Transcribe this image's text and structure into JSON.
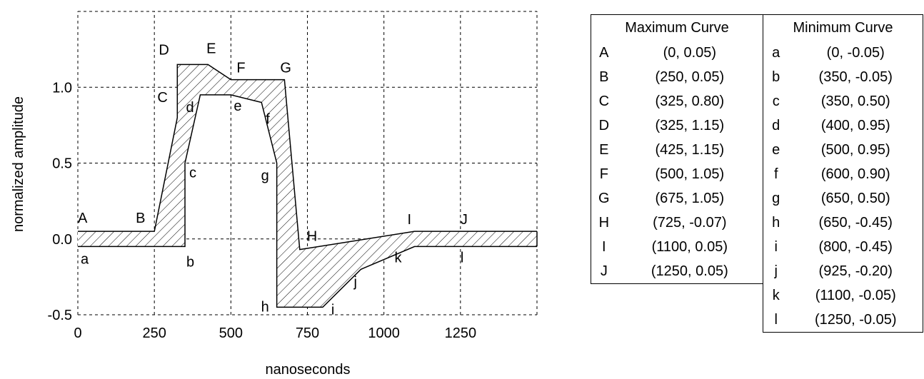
{
  "chart_data": {
    "type": "line",
    "title": "",
    "xlabel": "nanoseconds",
    "ylabel": "normalized amplitude",
    "xlim": [
      0,
      1500
    ],
    "ylim": [
      -0.5,
      1.5
    ],
    "x_ticks": [
      0,
      250,
      500,
      750,
      1000,
      1250
    ],
    "x_tick_labels": [
      "0",
      "250",
      "500",
      "750",
      "1000",
      "1250"
    ],
    "y_ticks": [
      -0.5,
      0.0,
      0.5,
      1.0
    ],
    "y_tick_labels": [
      "-0.5",
      "0.0",
      "0.5",
      "1.0"
    ],
    "grid": true,
    "region_fill": "diagonal hatch between curves",
    "series": [
      {
        "name": "Maximum Curve",
        "points": [
          {
            "label": "A",
            "x": 0,
            "y": 0.05
          },
          {
            "label": "B",
            "x": 250,
            "y": 0.05
          },
          {
            "label": "C",
            "x": 325,
            "y": 0.8
          },
          {
            "label": "D",
            "x": 325,
            "y": 1.15
          },
          {
            "label": "E",
            "x": 425,
            "y": 1.15
          },
          {
            "label": "F",
            "x": 500,
            "y": 1.05
          },
          {
            "label": "G",
            "x": 675,
            "y": 1.05
          },
          {
            "label": "H",
            "x": 725,
            "y": -0.07
          },
          {
            "label": "I",
            "x": 1100,
            "y": 0.05
          },
          {
            "label": "J",
            "x": 1250,
            "y": 0.05
          }
        ]
      },
      {
        "name": "Minimum Curve",
        "points": [
          {
            "label": "a",
            "x": 0,
            "y": -0.05
          },
          {
            "label": "b",
            "x": 350,
            "y": -0.05
          },
          {
            "label": "c",
            "x": 350,
            "y": 0.5
          },
          {
            "label": "d",
            "x": 400,
            "y": 0.95
          },
          {
            "label": "e",
            "x": 500,
            "y": 0.95
          },
          {
            "label": "f",
            "x": 600,
            "y": 0.9
          },
          {
            "label": "g",
            "x": 650,
            "y": 0.5
          },
          {
            "label": "h",
            "x": 650,
            "y": -0.45
          },
          {
            "label": "i",
            "x": 800,
            "y": -0.45
          },
          {
            "label": "j",
            "x": 925,
            "y": -0.2
          },
          {
            "label": "k",
            "x": 1100,
            "y": -0.05
          },
          {
            "label": "l",
            "x": 1250,
            "y": -0.05
          }
        ]
      }
    ]
  },
  "tables": {
    "max": {
      "header": "Maximum Curve",
      "rows": [
        {
          "label": "A",
          "value": "(0, 0.05)"
        },
        {
          "label": "B",
          "value": "(250, 0.05)"
        },
        {
          "label": "C",
          "value": "(325, 0.80)"
        },
        {
          "label": "D",
          "value": "(325, 1.15)"
        },
        {
          "label": "E",
          "value": "(425, 1.15)"
        },
        {
          "label": "F",
          "value": "(500, 1.05)"
        },
        {
          "label": "G",
          "value": "(675, 1.05)"
        },
        {
          "label": "H",
          "value": "(725, -0.07)"
        },
        {
          "label": "I",
          "value": "(1100, 0.05)"
        },
        {
          "label": "J",
          "value": "(1250, 0.05)"
        }
      ]
    },
    "min": {
      "header": "Minimum Curve",
      "rows": [
        {
          "label": "a",
          "value": "(0, -0.05)"
        },
        {
          "label": "b",
          "value": "(350, -0.05)"
        },
        {
          "label": "c",
          "value": "(350, 0.50)"
        },
        {
          "label": "d",
          "value": "(400, 0.95)"
        },
        {
          "label": "e",
          "value": "(500, 0.95)"
        },
        {
          "label": "f",
          "value": "(600, 0.90)"
        },
        {
          "label": "g",
          "value": "(650, 0.50)"
        },
        {
          "label": "h",
          "value": "(650, -0.45)"
        },
        {
          "label": "i",
          "value": "(800, -0.45)"
        },
        {
          "label": "j",
          "value": "(925, -0.20)"
        },
        {
          "label": "k",
          "value": "(1100, -0.05)"
        },
        {
          "label": "l",
          "value": "(1250, -0.05)"
        }
      ]
    }
  }
}
